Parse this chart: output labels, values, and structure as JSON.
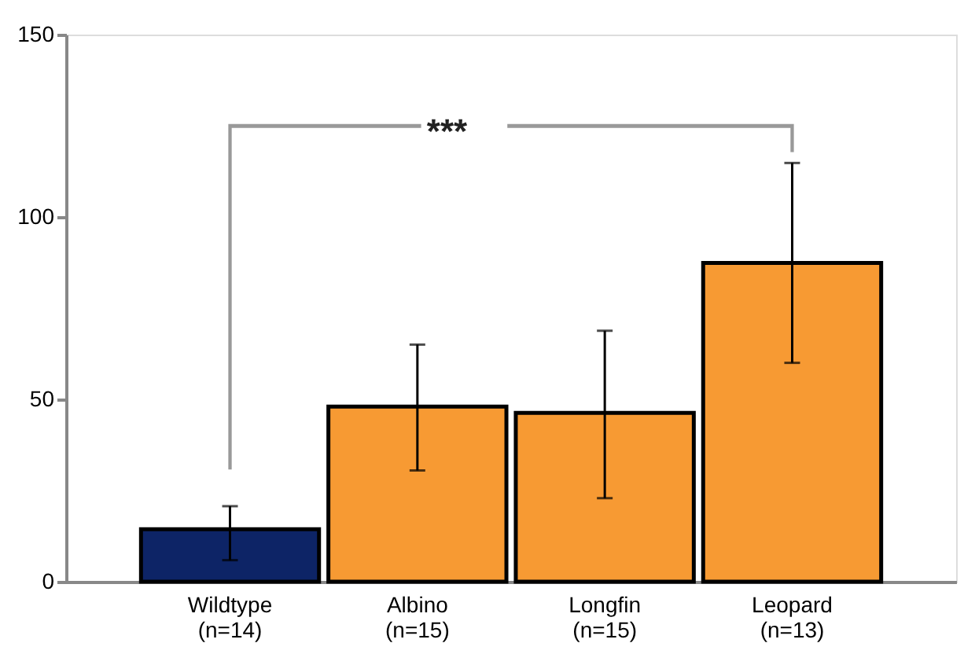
{
  "chart_data": {
    "type": "bar",
    "categories": [
      "Wildtype (n=14)",
      "Albino (n=15)",
      "Longfin (n=15)",
      "Leopard (n=13)"
    ],
    "values": [
      14.4,
      48,
      46.3,
      87.4
    ],
    "colors": [
      "#0d2466",
      "#f79a33",
      "#f79a33",
      "#f79a33"
    ],
    "errors": [
      [
        5.9,
        20.7
      ],
      [
        30.5,
        65
      ],
      [
        22.9,
        68.8
      ],
      [
        60,
        114.8
      ]
    ],
    "ylim": [
      0,
      150
    ],
    "yticks": [
      0,
      50,
      100,
      150
    ],
    "annotations": [
      "***"
    ],
    "grid": false
  }
}
